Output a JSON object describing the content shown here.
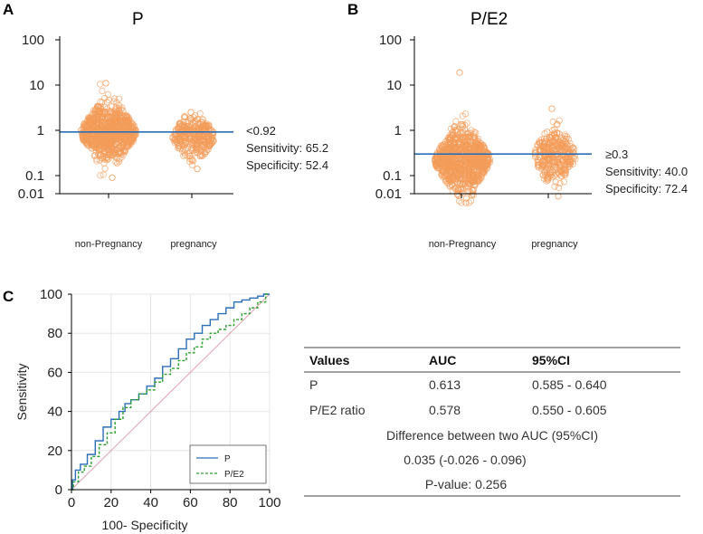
{
  "colors": {
    "dot": "#f39c5a",
    "cutoff_line": "#2a6fb8",
    "roc_p": "#2a6fb8",
    "roc_pe2": "#2aa02a",
    "diagonal": "#e0a0b0",
    "grid": "#e6e6e6",
    "axis": "#000000"
  },
  "chart_data": [
    {
      "id": "A",
      "type": "scatter",
      "panel_label": "A",
      "title": "P",
      "scale": "log",
      "yticks": [
        "100",
        "10",
        "1",
        "0.1",
        "0.01"
      ],
      "ylim": [
        0.01,
        100
      ],
      "categories": [
        "non-Pregnancy",
        "pregnancy"
      ],
      "series": [
        {
          "name": "non-Pregnancy",
          "n": 900,
          "center": 0.9,
          "spread": 0.28,
          "halfwidth": 0.34,
          "min": 0.09,
          "max": 11
        },
        {
          "name": "pregnancy",
          "n": 330,
          "center": 0.72,
          "spread": 0.22,
          "halfwidth": 0.26,
          "min": 0.14,
          "max": 2.5
        }
      ],
      "cutoff": 0.92,
      "annotation": [
        "<0.92",
        "Sensitivity: 65.2",
        "Specificity: 52.4"
      ]
    },
    {
      "id": "B",
      "type": "scatter",
      "panel_label": "B",
      "title": "P/E2",
      "scale": "log",
      "yticks": [
        "100",
        "10",
        "1",
        "0.1",
        "0.01"
      ],
      "ylim": [
        0.01,
        100
      ],
      "categories": [
        "non-Pregnancy",
        "pregnancy"
      ],
      "series": [
        {
          "name": "non-Pregnancy",
          "n": 900,
          "center": 0.22,
          "spread": 0.3,
          "halfwidth": 0.34,
          "min": 0.025,
          "max": 19
        },
        {
          "name": "pregnancy",
          "n": 330,
          "center": 0.28,
          "spread": 0.27,
          "halfwidth": 0.26,
          "min": 0.035,
          "max": 3
        }
      ],
      "cutoff": 0.3,
      "annotation": [
        "≥0.3",
        "Sensitivity: 40.0",
        "Specificity: 72.4"
      ]
    },
    {
      "id": "C",
      "type": "line",
      "panel_label": "C",
      "xlabel": "100- Specificity",
      "ylabel": "Sensitivity",
      "xlim": [
        0,
        100
      ],
      "ylim": [
        0,
        100
      ],
      "xticks": [
        0,
        20,
        40,
        60,
        80,
        100
      ],
      "yticks": [
        0,
        20,
        40,
        60,
        80,
        100
      ],
      "series": [
        {
          "name": "P",
          "x": [
            0,
            1,
            3,
            6,
            10,
            14,
            18,
            22,
            26,
            28,
            32,
            36,
            40,
            44,
            48,
            52,
            56,
            60,
            64,
            68,
            72,
            76,
            80,
            84,
            88,
            92,
            96,
            98,
            100
          ],
          "y": [
            0,
            5,
            10,
            13,
            18,
            25,
            32,
            36,
            40,
            44,
            46,
            49,
            53,
            57,
            63,
            67,
            72,
            77,
            80,
            84,
            87,
            90,
            93,
            96,
            97,
            98,
            99,
            100,
            100
          ]
        },
        {
          "name": "P/E2",
          "x": [
            0,
            2,
            5,
            8,
            12,
            16,
            20,
            24,
            28,
            32,
            36,
            40,
            44,
            48,
            52,
            56,
            60,
            64,
            68,
            72,
            76,
            80,
            84,
            88,
            92,
            96,
            100
          ],
          "y": [
            0,
            4,
            9,
            12,
            17,
            23,
            29,
            36,
            42,
            46,
            49,
            51,
            55,
            59,
            62,
            66,
            70,
            73,
            77,
            80,
            82,
            84,
            87,
            90,
            93,
            96,
            100
          ]
        }
      ],
      "legend": [
        "P",
        "P/E2"
      ]
    }
  ],
  "table": {
    "headers": [
      "Values",
      "AUC",
      "95%CI"
    ],
    "rows": [
      [
        "P",
        "0.613",
        "0.585 - 0.640"
      ],
      [
        "P/E2 ratio",
        "0.578",
        "0.550 - 0.605"
      ]
    ],
    "diff_title": "Difference between two AUC (95%CI)",
    "diff_value": "0.035 (-0.026 - 0.096)",
    "pvalue": "P-value: 0.256"
  }
}
